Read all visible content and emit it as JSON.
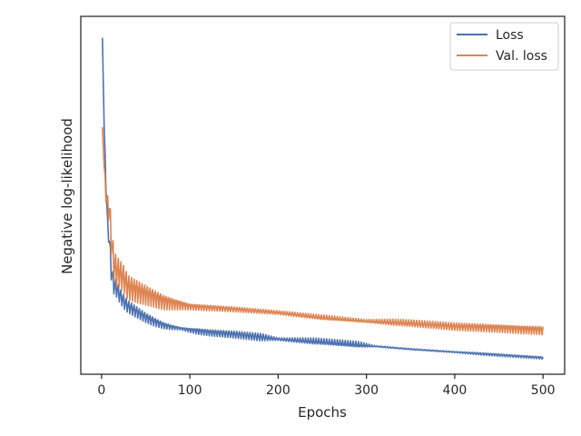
{
  "chart_data": {
    "type": "line",
    "title": "",
    "xlabel": "Epochs",
    "ylabel": "Negative log-likelihood",
    "xlim": [
      -23.5,
      524.5
    ],
    "ylim": [
      0.0,
      1.0
    ],
    "xticks": [
      0,
      100,
      200,
      300,
      400,
      500
    ],
    "xtick_labels": [
      "0",
      "100",
      "200",
      "300",
      "400",
      "500"
    ],
    "yticks": [],
    "grid": false,
    "legend": {
      "location": "upper right",
      "entries": [
        "Loss",
        "Val. loss"
      ]
    },
    "series": [
      {
        "name": "Loss",
        "color": "#4c72b0",
        "base": [
          [
            1,
            0.94
          ],
          [
            3,
            0.69
          ],
          [
            5,
            0.53
          ],
          [
            7,
            0.41
          ],
          [
            9,
            0.37
          ],
          [
            11,
            0.29
          ],
          [
            14,
            0.25
          ],
          [
            17,
            0.24
          ],
          [
            20,
            0.225
          ],
          [
            25,
            0.205
          ],
          [
            30,
            0.19
          ],
          [
            40,
            0.175
          ],
          [
            50,
            0.16
          ],
          [
            60,
            0.148
          ],
          [
            70,
            0.138
          ],
          [
            80,
            0.132
          ],
          [
            90,
            0.128
          ],
          [
            100,
            0.124
          ],
          [
            120,
            0.118
          ],
          [
            150,
            0.112
          ],
          [
            180,
            0.104
          ],
          [
            200,
            0.098
          ],
          [
            250,
            0.09
          ],
          [
            300,
            0.08
          ],
          [
            350,
            0.07
          ],
          [
            400,
            0.062
          ],
          [
            450,
            0.054
          ],
          [
            500,
            0.046
          ]
        ],
        "oscillation": [
          [
            1,
            0.0
          ],
          [
            10,
            0.03
          ],
          [
            30,
            0.02
          ],
          [
            60,
            0.014
          ],
          [
            90,
            0.004
          ],
          [
            110,
            0.01
          ],
          [
            180,
            0.012
          ],
          [
            200,
            0.004
          ],
          [
            240,
            0.01
          ],
          [
            290,
            0.01
          ],
          [
            310,
            0.002
          ],
          [
            400,
            0.002
          ],
          [
            430,
            0.004
          ],
          [
            500,
            0.004
          ]
        ]
      },
      {
        "name": "Val. loss",
        "color": "#dd8452",
        "base": [
          [
            1,
            0.69
          ],
          [
            3,
            0.58
          ],
          [
            5,
            0.5
          ],
          [
            7,
            0.47
          ],
          [
            9,
            0.46
          ],
          [
            11,
            0.38
          ],
          [
            14,
            0.31
          ],
          [
            17,
            0.29
          ],
          [
            20,
            0.285
          ],
          [
            25,
            0.27
          ],
          [
            30,
            0.245
          ],
          [
            40,
            0.235
          ],
          [
            50,
            0.225
          ],
          [
            60,
            0.215
          ],
          [
            70,
            0.205
          ],
          [
            80,
            0.2
          ],
          [
            90,
            0.195
          ],
          [
            100,
            0.19
          ],
          [
            150,
            0.182
          ],
          [
            200,
            0.172
          ],
          [
            250,
            0.158
          ],
          [
            300,
            0.148
          ],
          [
            350,
            0.142
          ],
          [
            400,
            0.134
          ],
          [
            450,
            0.13
          ],
          [
            500,
            0.124
          ]
        ],
        "oscillation": [
          [
            1,
            0.0
          ],
          [
            10,
            0.05
          ],
          [
            30,
            0.04
          ],
          [
            70,
            0.025
          ],
          [
            100,
            0.01
          ],
          [
            200,
            0.006
          ],
          [
            250,
            0.008
          ],
          [
            300,
            0.005
          ],
          [
            330,
            0.01
          ],
          [
            400,
            0.012
          ],
          [
            500,
            0.014
          ]
        ]
      }
    ]
  }
}
